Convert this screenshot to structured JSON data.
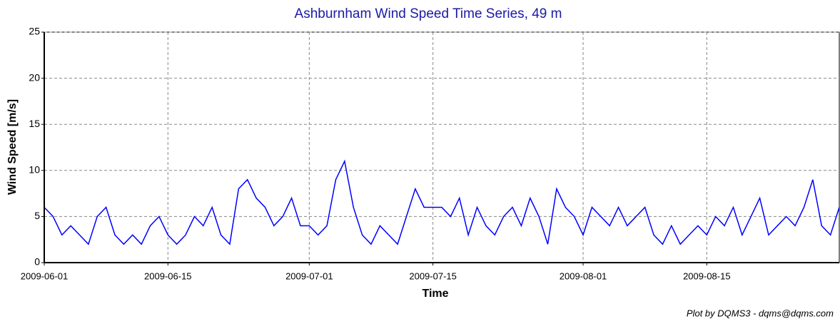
{
  "chart_data": {
    "type": "line",
    "title": "Ashburnham Wind Speed Time Series, 49 m",
    "ylabel": "Wind Speed [m/s]",
    "xlabel": "Time",
    "footer": "Plot by DQMS3 - dqms@dqms.com",
    "x": [
      "2009-06-01",
      "2009-06-02",
      "2009-06-03",
      "2009-06-04",
      "2009-06-05",
      "2009-06-06",
      "2009-06-07",
      "2009-06-08",
      "2009-06-09",
      "2009-06-10",
      "2009-06-11",
      "2009-06-12",
      "2009-06-13",
      "2009-06-14",
      "2009-06-15",
      "2009-06-16",
      "2009-06-17",
      "2009-06-18",
      "2009-06-19",
      "2009-06-20",
      "2009-06-21",
      "2009-06-22",
      "2009-06-23",
      "2009-06-24",
      "2009-06-25",
      "2009-06-26",
      "2009-06-27",
      "2009-06-28",
      "2009-06-29",
      "2009-06-30",
      "2009-07-01",
      "2009-07-02",
      "2009-07-03",
      "2009-07-04",
      "2009-07-05",
      "2009-07-06",
      "2009-07-07",
      "2009-07-08",
      "2009-07-09",
      "2009-07-10",
      "2009-07-11",
      "2009-07-12",
      "2009-07-13",
      "2009-07-14",
      "2009-07-15",
      "2009-07-16",
      "2009-07-17",
      "2009-07-18",
      "2009-07-19",
      "2009-07-20",
      "2009-07-21",
      "2009-07-22",
      "2009-07-23",
      "2009-07-24",
      "2009-07-25",
      "2009-07-26",
      "2009-07-27",
      "2009-07-28",
      "2009-07-29",
      "2009-07-30",
      "2009-07-31",
      "2009-08-01",
      "2009-08-02",
      "2009-08-03",
      "2009-08-04",
      "2009-08-05",
      "2009-08-06",
      "2009-08-07",
      "2009-08-08",
      "2009-08-09",
      "2009-08-10",
      "2009-08-11",
      "2009-08-12",
      "2009-08-13",
      "2009-08-14",
      "2009-08-15",
      "2009-08-16",
      "2009-08-17",
      "2009-08-18",
      "2009-08-19",
      "2009-08-20",
      "2009-08-21",
      "2009-08-22",
      "2009-08-23",
      "2009-08-24",
      "2009-08-25",
      "2009-08-26",
      "2009-08-27",
      "2009-08-28",
      "2009-08-29",
      "2009-08-30"
    ],
    "series": [
      {
        "name": "Wind Speed",
        "color": "#0000ff",
        "values": [
          6,
          5,
          3,
          4,
          3,
          2,
          5,
          6,
          3,
          2,
          3,
          2,
          4,
          5,
          3,
          2,
          3,
          5,
          4,
          6,
          3,
          2,
          8,
          9,
          7,
          6,
          4,
          5,
          7,
          4,
          4,
          3,
          4,
          9,
          11,
          6,
          3,
          2,
          4,
          3,
          2,
          5,
          8,
          6,
          6,
          6,
          5,
          7,
          3,
          6,
          4,
          3,
          5,
          6,
          4,
          7,
          5,
          2,
          8,
          6,
          5,
          3,
          6,
          5,
          4,
          6,
          4,
          5,
          6,
          3,
          2,
          4,
          2,
          3,
          4,
          3,
          5,
          4,
          6,
          3,
          5,
          7,
          3,
          4,
          5,
          4,
          6,
          9,
          4,
          3,
          6
        ]
      }
    ],
    "xlim": [
      "2009-06-01",
      "2009-08-30"
    ],
    "xticks": [
      "2009-06-01",
      "2009-06-15",
      "2009-07-01",
      "2009-07-15",
      "2009-08-01",
      "2009-08-15"
    ],
    "ylim": [
      0,
      25
    ],
    "yticks": [
      0,
      5,
      10,
      15,
      20,
      25
    ],
    "grid": true
  }
}
